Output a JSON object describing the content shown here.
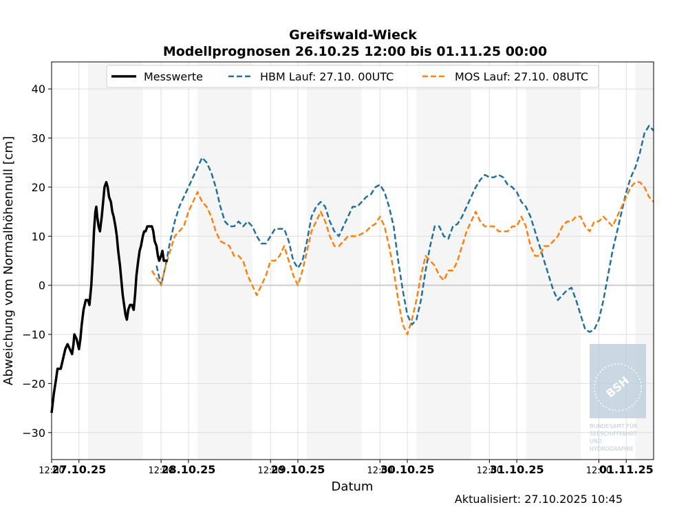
{
  "chart_data": {
    "type": "line",
    "title": "Greifswald-Wieck",
    "subtitle": "Modellprognosen 26.10.25 12:00 bis 01.11.25 00:00",
    "xlabel": "Datum",
    "ylabel": "Abweichung vom Normalhöhennull [cm]",
    "x_unit": "hours since 26.10.25 12:00",
    "xlim": [
      0,
      132
    ],
    "ylim": [
      -35.5,
      45.5
    ],
    "yticks": [
      -30,
      -20,
      -10,
      0,
      10,
      20,
      30,
      40
    ],
    "grid": true,
    "legend_position": "top-center",
    "footer": "Aktualisiert: 27.10.2025 10:45",
    "x_ticks": [
      {
        "x": 0,
        "label": "12:00",
        "bold": false
      },
      {
        "x": 6,
        "label": "27.10.25",
        "bold": true
      },
      {
        "x": 24,
        "label": "12:00",
        "bold": false
      },
      {
        "x": 30,
        "label": "28.10.25",
        "bold": true
      },
      {
        "x": 48,
        "label": "12:00",
        "bold": false
      },
      {
        "x": 54,
        "label": "29.10.25",
        "bold": true
      },
      {
        "x": 72,
        "label": "12:00",
        "bold": false
      },
      {
        "x": 78,
        "label": "30.10.25",
        "bold": true
      },
      {
        "x": 96,
        "label": "12:00",
        "bold": false
      },
      {
        "x": 102,
        "label": "31.10.25",
        "bold": true
      },
      {
        "x": 120,
        "label": "12:00",
        "bold": false
      },
      {
        "x": 126,
        "label": "01.11.25",
        "bold": true
      }
    ],
    "night_bands": [
      [
        8,
        20
      ],
      [
        32,
        44
      ],
      [
        56,
        68
      ],
      [
        80,
        92
      ],
      [
        104,
        116
      ],
      [
        128,
        132
      ]
    ],
    "series": [
      {
        "name": "Messwerte",
        "color": "#000000",
        "style": "solid",
        "points": [
          [
            0,
            -26
          ],
          [
            0.5,
            -22
          ],
          [
            1,
            -19
          ],
          [
            1.3,
            -17
          ],
          [
            2,
            -17
          ],
          [
            2.5,
            -15
          ],
          [
            3,
            -13
          ],
          [
            3.5,
            -12
          ],
          [
            4,
            -13
          ],
          [
            4.5,
            -14
          ],
          [
            4.8,
            -12
          ],
          [
            5,
            -10
          ],
          [
            5.5,
            -11
          ],
          [
            6,
            -13
          ],
          [
            6.3,
            -11
          ],
          [
            6.6,
            -8
          ],
          [
            7,
            -5
          ],
          [
            7.5,
            -3
          ],
          [
            8,
            -3
          ],
          [
            8.3,
            -4
          ],
          [
            8.7,
            0
          ],
          [
            9,
            5
          ],
          [
            9.3,
            11
          ],
          [
            9.6,
            15
          ],
          [
            9.8,
            16
          ],
          [
            10,
            14
          ],
          [
            10.3,
            12
          ],
          [
            10.6,
            11
          ],
          [
            11,
            14
          ],
          [
            11.3,
            17
          ],
          [
            11.6,
            20
          ],
          [
            12,
            21
          ],
          [
            12.3,
            20
          ],
          [
            12.6,
            18
          ],
          [
            13,
            17
          ],
          [
            13.3,
            15
          ],
          [
            13.6,
            14
          ],
          [
            14,
            12
          ],
          [
            14.3,
            10
          ],
          [
            14.6,
            7
          ],
          [
            15,
            4
          ],
          [
            15.3,
            1
          ],
          [
            15.6,
            -2
          ],
          [
            15.9,
            -4
          ],
          [
            16.2,
            -6
          ],
          [
            16.5,
            -7
          ],
          [
            16.8,
            -5
          ],
          [
            17.2,
            -4
          ],
          [
            17.6,
            -4
          ],
          [
            18,
            -5
          ],
          [
            18.3,
            -2
          ],
          [
            18.6,
            2
          ],
          [
            19,
            5
          ],
          [
            19.3,
            7
          ],
          [
            19.6,
            8
          ],
          [
            20,
            10
          ],
          [
            20.3,
            11
          ],
          [
            20.6,
            11
          ],
          [
            21,
            12
          ],
          [
            21.5,
            12
          ],
          [
            22,
            12
          ],
          [
            22.3,
            11
          ],
          [
            22.6,
            9
          ],
          [
            23,
            8
          ],
          [
            23.3,
            6
          ],
          [
            23.6,
            5
          ],
          [
            24,
            6
          ],
          [
            24.3,
            7
          ],
          [
            24.6,
            5
          ],
          [
            25,
            5
          ],
          [
            25.5,
            5
          ]
        ]
      },
      {
        "name": "HBM Lauf: 27.10. 00UTC",
        "color": "#1f6f9f",
        "style": "dashed",
        "points": [
          [
            23,
            4
          ],
          [
            24,
            0
          ],
          [
            25,
            4
          ],
          [
            26,
            9
          ],
          [
            27,
            13
          ],
          [
            28,
            16
          ],
          [
            29,
            18
          ],
          [
            30,
            20
          ],
          [
            31,
            22
          ],
          [
            32,
            24
          ],
          [
            33,
            26
          ],
          [
            34,
            25
          ],
          [
            35,
            23
          ],
          [
            36,
            20
          ],
          [
            37,
            16
          ],
          [
            38,
            13
          ],
          [
            39,
            12
          ],
          [
            40,
            12
          ],
          [
            41,
            13
          ],
          [
            42,
            12
          ],
          [
            43,
            13
          ],
          [
            44,
            12
          ],
          [
            45,
            10
          ],
          [
            46,
            8.5
          ],
          [
            47,
            8.5
          ],
          [
            48,
            10
          ],
          [
            49,
            11.5
          ],
          [
            50,
            11.5
          ],
          [
            51,
            11.5
          ],
          [
            52,
            9
          ],
          [
            53,
            5
          ],
          [
            54,
            3.5
          ],
          [
            55,
            5
          ],
          [
            56,
            9
          ],
          [
            57,
            14
          ],
          [
            58,
            16
          ],
          [
            59,
            17
          ],
          [
            60,
            16
          ],
          [
            61,
            13
          ],
          [
            62,
            11
          ],
          [
            63,
            10
          ],
          [
            64,
            12
          ],
          [
            65,
            14
          ],
          [
            66,
            16
          ],
          [
            67,
            16
          ],
          [
            68,
            17
          ],
          [
            69,
            18
          ],
          [
            70,
            18.5
          ],
          [
            71,
            20
          ],
          [
            72,
            20.5
          ],
          [
            73,
            19
          ],
          [
            74,
            16
          ],
          [
            75,
            12
          ],
          [
            76,
            5
          ],
          [
            77,
            -1
          ],
          [
            78,
            -6
          ],
          [
            79,
            -8
          ],
          [
            80,
            -7
          ],
          [
            81,
            -3
          ],
          [
            82,
            3
          ],
          [
            83,
            8
          ],
          [
            84,
            12
          ],
          [
            85,
            12
          ],
          [
            86,
            10
          ],
          [
            87,
            9.5
          ],
          [
            88,
            12
          ],
          [
            89,
            12.5
          ],
          [
            90,
            14
          ],
          [
            91,
            16
          ],
          [
            92,
            18
          ],
          [
            93,
            20
          ],
          [
            94,
            21.5
          ],
          [
            95,
            22.5
          ],
          [
            96,
            22
          ],
          [
            97,
            22
          ],
          [
            98,
            22.5
          ],
          [
            99,
            22
          ],
          [
            100,
            20.5
          ],
          [
            101,
            20
          ],
          [
            102,
            19
          ],
          [
            103,
            17
          ],
          [
            104,
            16
          ],
          [
            105,
            14
          ],
          [
            106,
            11
          ],
          [
            107,
            8
          ],
          [
            108,
            5
          ],
          [
            109,
            2
          ],
          [
            110,
            -1
          ],
          [
            111,
            -3
          ],
          [
            112,
            -2
          ],
          [
            113,
            -1
          ],
          [
            114,
            -0.5
          ],
          [
            115,
            -3
          ],
          [
            116,
            -6
          ],
          [
            117,
            -9
          ],
          [
            118,
            -9.5
          ],
          [
            119,
            -9
          ],
          [
            120,
            -7
          ],
          [
            121,
            -3
          ],
          [
            122,
            2
          ],
          [
            123,
            7
          ],
          [
            124,
            11
          ],
          [
            125,
            15
          ],
          [
            126,
            19
          ],
          [
            127,
            22
          ],
          [
            128,
            24
          ],
          [
            129,
            27
          ],
          [
            130,
            31
          ],
          [
            131,
            32.5
          ],
          [
            132,
            31.5
          ]
        ]
      },
      {
        "name": "MOS Lauf: 27.10. 08UTC",
        "color": "#ff7f0e",
        "style": "dashed",
        "points": [
          [
            22,
            3
          ],
          [
            23,
            1.5
          ],
          [
            24,
            0
          ],
          [
            25,
            4
          ],
          [
            26,
            7
          ],
          [
            27,
            10
          ],
          [
            28,
            11
          ],
          [
            29,
            12
          ],
          [
            30,
            15
          ],
          [
            31,
            17
          ],
          [
            32,
            19
          ],
          [
            33,
            17
          ],
          [
            34,
            16
          ],
          [
            35,
            14
          ],
          [
            36,
            11
          ],
          [
            37,
            9
          ],
          [
            38,
            8.5
          ],
          [
            39,
            8
          ],
          [
            40,
            6
          ],
          [
            41,
            6
          ],
          [
            42,
            5
          ],
          [
            43,
            2
          ],
          [
            44,
            0
          ],
          [
            45,
            -2
          ],
          [
            46,
            0
          ],
          [
            47,
            2
          ],
          [
            48,
            5
          ],
          [
            49,
            5
          ],
          [
            50,
            6
          ],
          [
            51,
            8
          ],
          [
            52,
            5
          ],
          [
            53,
            2
          ],
          [
            54,
            0
          ],
          [
            55,
            3
          ],
          [
            56,
            7
          ],
          [
            57,
            11
          ],
          [
            58,
            13
          ],
          [
            59,
            15
          ],
          [
            60,
            13
          ],
          [
            61,
            10
          ],
          [
            62,
            8
          ],
          [
            63,
            8
          ],
          [
            64,
            9
          ],
          [
            65,
            10
          ],
          [
            66,
            10
          ],
          [
            67,
            10
          ],
          [
            68,
            10.5
          ],
          [
            69,
            11
          ],
          [
            70,
            12
          ],
          [
            71,
            12.5
          ],
          [
            72,
            14
          ],
          [
            73,
            12
          ],
          [
            74,
            8
          ],
          [
            75,
            3
          ],
          [
            76,
            -3
          ],
          [
            77,
            -8
          ],
          [
            78,
            -10
          ],
          [
            79,
            -7
          ],
          [
            80,
            -3
          ],
          [
            81,
            2
          ],
          [
            82,
            6
          ],
          [
            83,
            5
          ],
          [
            84,
            4
          ],
          [
            85,
            2
          ],
          [
            86,
            1
          ],
          [
            87,
            3
          ],
          [
            88,
            3
          ],
          [
            89,
            5
          ],
          [
            90,
            8
          ],
          [
            91,
            11
          ],
          [
            92,
            13
          ],
          [
            93,
            15
          ],
          [
            94,
            13
          ],
          [
            95,
            12
          ],
          [
            96,
            12
          ],
          [
            97,
            12
          ],
          [
            98,
            11
          ],
          [
            99,
            11
          ],
          [
            100,
            11
          ],
          [
            101,
            12
          ],
          [
            102,
            12
          ],
          [
            103,
            14
          ],
          [
            104,
            12
          ],
          [
            105,
            8
          ],
          [
            106,
            6
          ],
          [
            107,
            6
          ],
          [
            108,
            8
          ],
          [
            109,
            8
          ],
          [
            110,
            9
          ],
          [
            111,
            10
          ],
          [
            112,
            12
          ],
          [
            113,
            13
          ],
          [
            114,
            13
          ],
          [
            115,
            14
          ],
          [
            116,
            14
          ],
          [
            117,
            12
          ],
          [
            118,
            11
          ],
          [
            119,
            13
          ],
          [
            120,
            13
          ],
          [
            121,
            14
          ],
          [
            122,
            13
          ],
          [
            123,
            12
          ],
          [
            124,
            14
          ],
          [
            125,
            16
          ],
          [
            126,
            18
          ],
          [
            127,
            20
          ],
          [
            128,
            21
          ],
          [
            129,
            21
          ],
          [
            130,
            20
          ],
          [
            131,
            18
          ],
          [
            132,
            17
          ]
        ]
      }
    ]
  },
  "logo": {
    "badge": "BSH",
    "lines": [
      "BUNDESAMT FÜR",
      "SEESCHIFFFAHRT",
      "UND",
      "HYDROGRAPHIE"
    ],
    "color": "#b9cad8"
  }
}
